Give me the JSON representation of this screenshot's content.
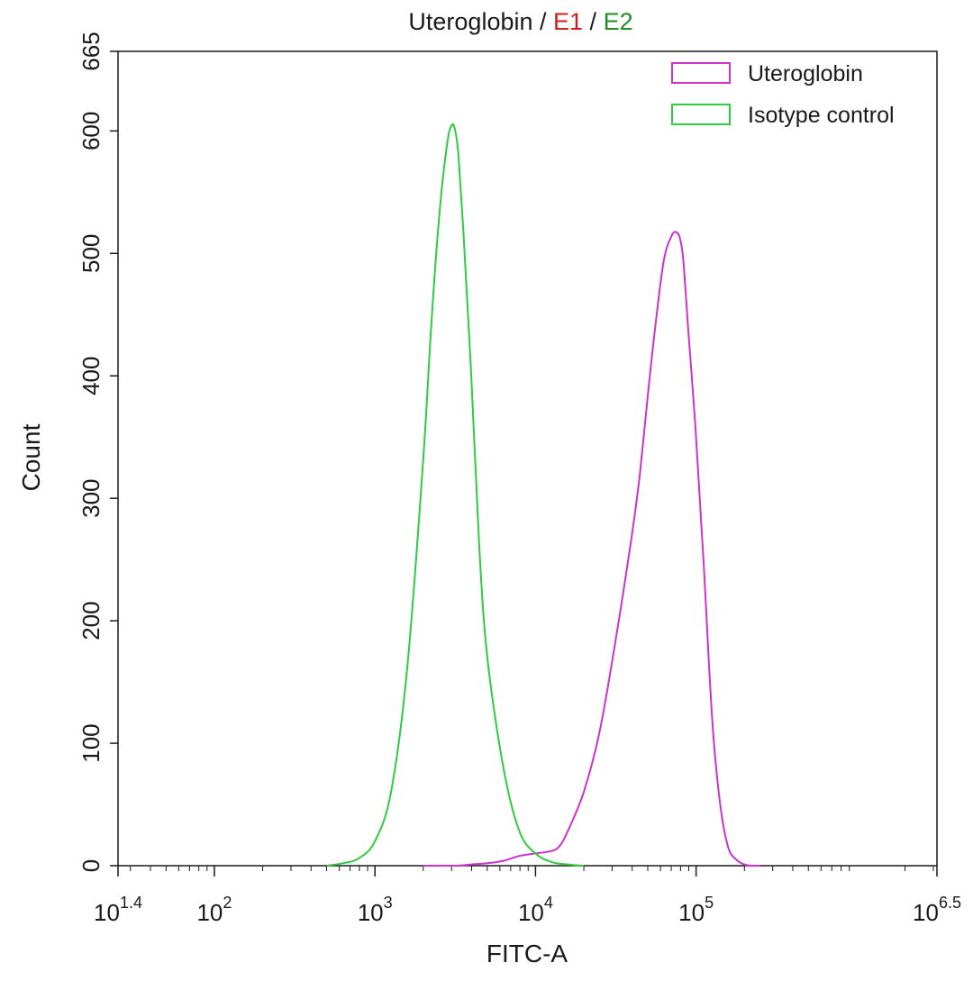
{
  "chart_data": {
    "type": "line",
    "title_parts": [
      {
        "text": "Uteroglobin",
        "color": "#1a1a1a"
      },
      {
        "text": " / ",
        "color": "#1a1a1a"
      },
      {
        "text": "E1",
        "color": "#cc1f1f"
      },
      {
        "text": " / ",
        "color": "#1a1a1a"
      },
      {
        "text": "E2",
        "color": "#1f8c2a"
      }
    ],
    "xlabel": "FITC-A",
    "ylabel": "Count",
    "x_scale": "log",
    "xlim_log10": [
      1.4,
      6.5
    ],
    "ylim": [
      0,
      665
    ],
    "y_ticks": [
      0,
      100,
      200,
      300,
      400,
      500,
      600,
      665
    ],
    "x_ticks": [
      {
        "base": "10",
        "exp": "1.4",
        "log": 1.4
      },
      {
        "base": "10",
        "exp": "2",
        "log": 2
      },
      {
        "base": "10",
        "exp": "3",
        "log": 3
      },
      {
        "base": "10",
        "exp": "4",
        "log": 4
      },
      {
        "base": "10",
        "exp": "5",
        "log": 5
      },
      {
        "base": "10",
        "exp": "6.5",
        "log": 6.5
      }
    ],
    "grid": false,
    "legend_position": "top-right",
    "series": [
      {
        "name": "Uteroglobin",
        "color": "#cc33cc",
        "x_log10": [
          3.3,
          3.5,
          3.6,
          3.7,
          3.8,
          3.9,
          4.0,
          4.1,
          4.15,
          4.2,
          4.3,
          4.4,
          4.5,
          4.6,
          4.65,
          4.7,
          4.75,
          4.8,
          4.85,
          4.88,
          4.9,
          4.92,
          4.95,
          5.0,
          5.05,
          5.1,
          5.15,
          5.2,
          5.25,
          5.3,
          5.35,
          5.4
        ],
        "y": [
          0,
          0,
          1,
          2,
          4,
          8,
          10,
          12,
          16,
          28,
          60,
          110,
          185,
          270,
          320,
          385,
          445,
          495,
          515,
          517,
          512,
          495,
          440,
          350,
          240,
          120,
          50,
          15,
          5,
          1,
          0,
          0
        ]
      },
      {
        "name": "Isotype control",
        "color": "#2ecc40",
        "x_log10": [
          2.7,
          2.8,
          2.9,
          3.0,
          3.1,
          3.2,
          3.3,
          3.35,
          3.4,
          3.45,
          3.48,
          3.5,
          3.52,
          3.55,
          3.6,
          3.65,
          3.7,
          3.8,
          3.9,
          4.0,
          4.1,
          4.2,
          4.3
        ],
        "y": [
          0,
          2,
          6,
          20,
          60,
          160,
          330,
          440,
          530,
          590,
          605,
          600,
          580,
          520,
          400,
          260,
          170,
          80,
          28,
          10,
          3,
          1,
          0
        ]
      }
    ]
  }
}
